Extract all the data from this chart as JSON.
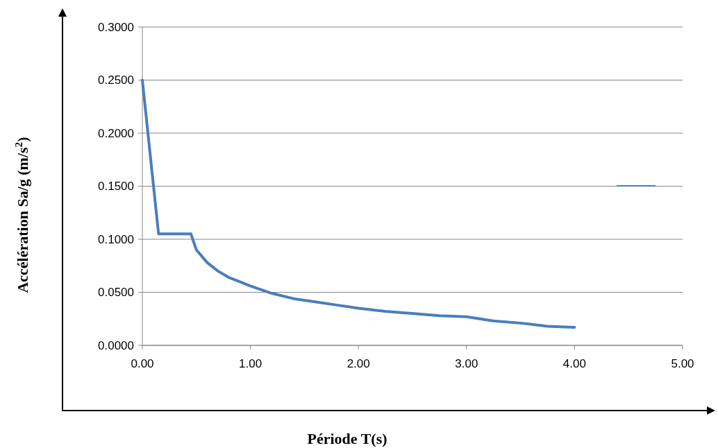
{
  "chart_data": {
    "type": "line",
    "xlabel": "Période T(s)",
    "ylabel": "Accélération  Sa/g (m/s$^{2}$)",
    "x": [
      0,
      0.15,
      0.45,
      0.5,
      0.6,
      0.7,
      0.8,
      0.9,
      1.0,
      1.2,
      1.4,
      1.6,
      1.8,
      2.0,
      2.25,
      2.5,
      2.75,
      3.0,
      3.25,
      3.5,
      3.75,
      4.0
    ],
    "series": [
      {
        "color": "#4a7ebb",
        "values": [
          0.25,
          0.105,
          0.105,
          0.09,
          0.078,
          0.07,
          0.064,
          0.06,
          0.056,
          0.049,
          0.044,
          0.041,
          0.038,
          0.035,
          0.032,
          0.03,
          0.028,
          0.027,
          0.023,
          0.021,
          0.018,
          0.017
        ]
      }
    ],
    "xlim": [
      0,
      5
    ],
    "xticks": [
      {
        "value": 0,
        "label": "0.00"
      },
      {
        "value": 1,
        "label": "1.00"
      },
      {
        "value": 2,
        "label": "2.00"
      },
      {
        "value": 3,
        "label": "3.00"
      },
      {
        "value": 4,
        "label": "4.00"
      },
      {
        "value": 5,
        "label": "5.00"
      }
    ],
    "ylim": [
      0,
      0.3
    ],
    "yticks": [
      {
        "value": 0,
        "label": "0.0000"
      },
      {
        "value": 0.05,
        "label": "0.0500"
      },
      {
        "value": 0.1,
        "label": "0.1000"
      },
      {
        "value": 0.15,
        "label": "0.1500"
      },
      {
        "value": 0.2,
        "label": "0.2000"
      },
      {
        "value": 0.25,
        "label": "0.2500"
      },
      {
        "value": 0.3,
        "label": "0.3000"
      }
    ],
    "grid": "y",
    "marker": "none",
    "line_style": "solid"
  }
}
